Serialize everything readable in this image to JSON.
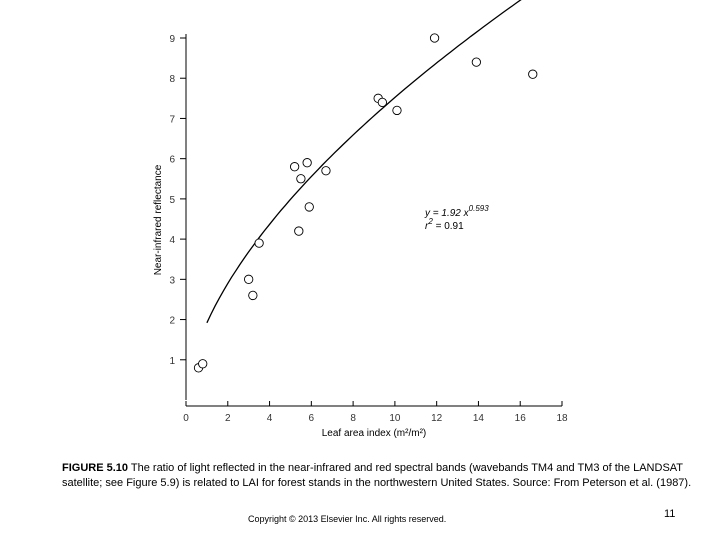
{
  "chart_data": {
    "type": "scatter",
    "xlabel": "Leaf area index (m²/m²)",
    "ylabel": "Near-infrared reflectance",
    "xlim": [
      0,
      18
    ],
    "ylim": [
      0,
      9
    ],
    "x_ticks": [
      0,
      2,
      4,
      6,
      8,
      10,
      12,
      14,
      16,
      18
    ],
    "y_ticks": [
      1,
      2,
      3,
      4,
      5,
      6,
      7,
      8,
      9
    ],
    "points": [
      {
        "x": 0.6,
        "y": 0.8
      },
      {
        "x": 0.8,
        "y": 0.9
      },
      {
        "x": 3.0,
        "y": 3.0
      },
      {
        "x": 3.2,
        "y": 2.6
      },
      {
        "x": 3.5,
        "y": 3.9
      },
      {
        "x": 5.2,
        "y": 5.8
      },
      {
        "x": 5.4,
        "y": 4.2
      },
      {
        "x": 5.5,
        "y": 5.5
      },
      {
        "x": 5.8,
        "y": 5.9
      },
      {
        "x": 5.9,
        "y": 4.8
      },
      {
        "x": 6.7,
        "y": 5.7
      },
      {
        "x": 9.2,
        "y": 7.5
      },
      {
        "x": 9.4,
        "y": 7.4
      },
      {
        "x": 10.1,
        "y": 7.2
      },
      {
        "x": 11.9,
        "y": 9.0
      },
      {
        "x": 13.9,
        "y": 8.4
      },
      {
        "x": 16.6,
        "y": 8.1
      }
    ],
    "fit": {
      "coefficient": 1.92,
      "exponent": 0.593,
      "x_range": [
        1.0,
        16.8
      ],
      "equation_text": "y = 1.92 x",
      "exponent_text": "0.593",
      "r2_prefix": "r",
      "r2_sup": "2",
      "r2_value_text": " = 0.91"
    }
  },
  "caption": {
    "label": "FIGURE 5.10",
    "text": " The ratio of light reflected in the near-infrared and red spectral bands (wavebands TM4 and TM3 of the LANDSAT satellite; see Figure 5.9) is related to LAI for forest stands in the northwestern United States. Source: From Peterson et al. (1987)."
  },
  "footer": {
    "copyright": "Copyright © 2013 Elsevier Inc. All rights reserved.",
    "page_number": "11"
  }
}
